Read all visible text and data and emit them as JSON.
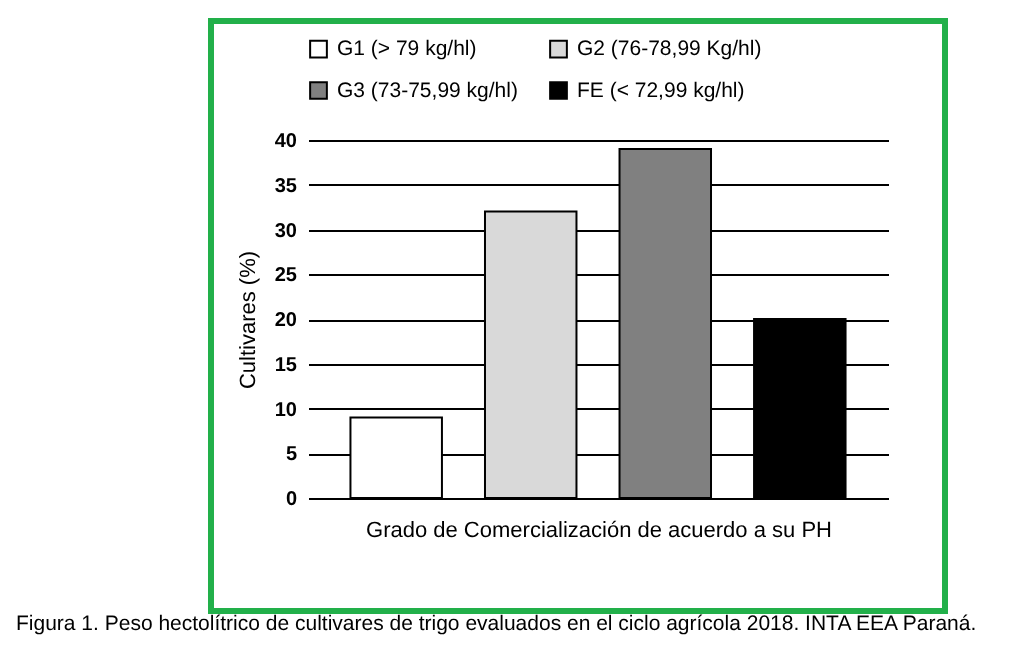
{
  "chart_data": {
    "type": "bar",
    "xlabel": "Grado de Comercialización de acuerdo a su PH",
    "ylabel": "Cultivares (%)",
    "categories": [
      null
    ],
    "series": [
      {
        "name": "G1 (> 79 kg/hl)",
        "color": "#ffffff",
        "values": [
          9
        ]
      },
      {
        "name": "G2 (76-78,99 Kg/hl)",
        "color": "#d9d9d9",
        "values": [
          32
        ]
      },
      {
        "name": "G3 (73-75,99 kg/hl)",
        "color": "#808080",
        "values": [
          39
        ]
      },
      {
        "name": "FE (< 72,99 kg/hl)",
        "color": "#000000",
        "values": [
          20
        ]
      }
    ],
    "ylim": [
      0,
      40
    ],
    "yticks": [
      0,
      5,
      10,
      15,
      20,
      25,
      30,
      35,
      40
    ],
    "grid": "y",
    "legend": "top",
    "annotations": [
      "Figura 1. Peso hectolítrico de cultivares de trigo evaluados en el ciclo agrícola 2018. INTA EEA Paraná."
    ]
  }
}
